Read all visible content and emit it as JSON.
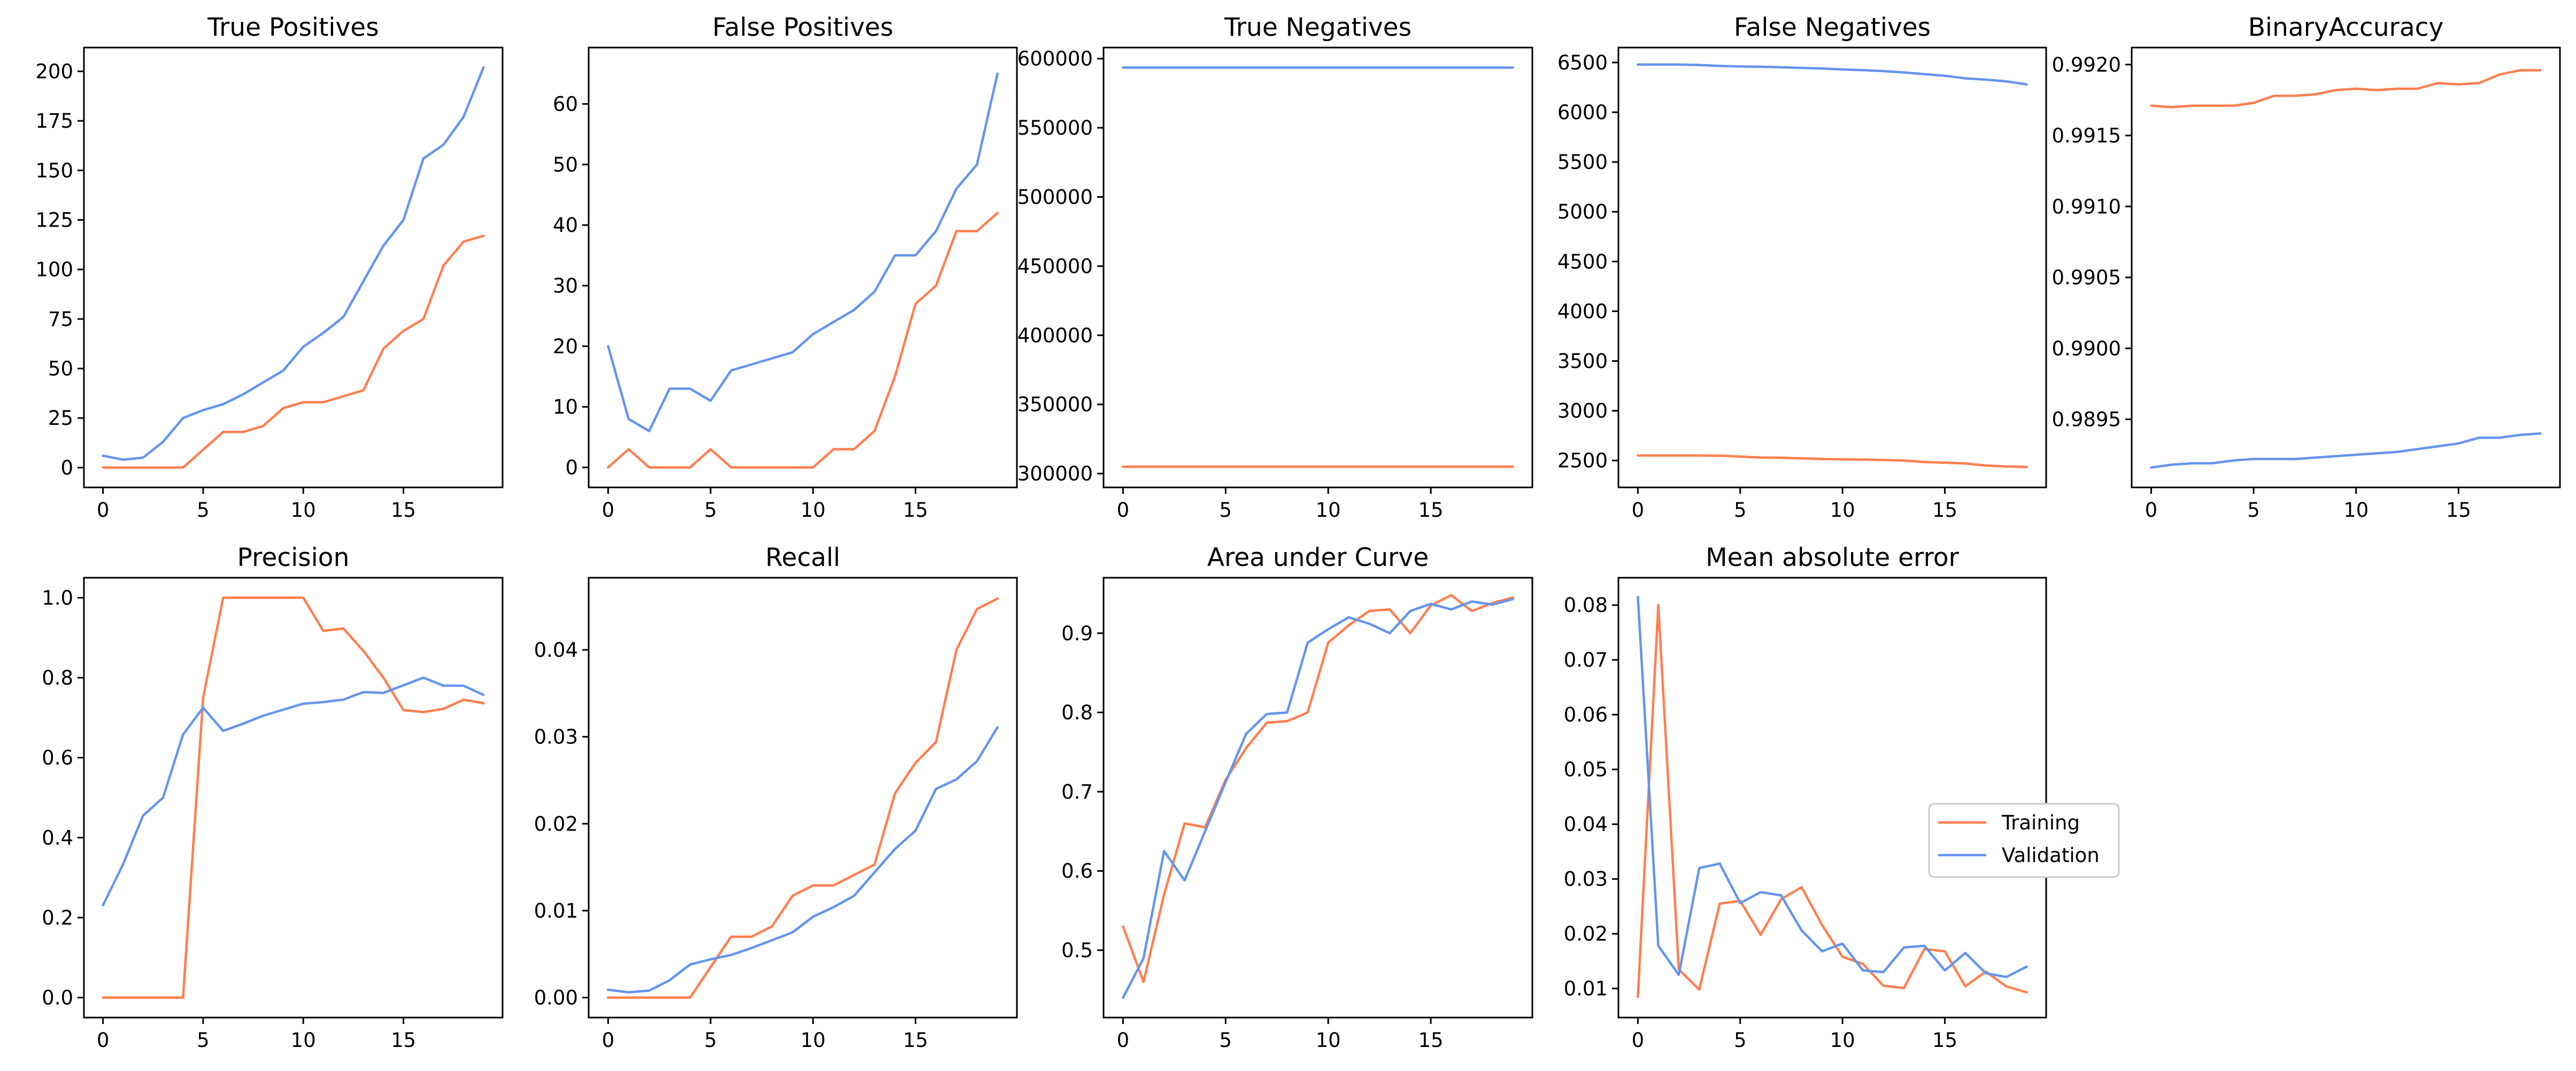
{
  "colors": {
    "training": "#ff7f50",
    "validation": "#6495ed"
  },
  "legend": {
    "entries": [
      {
        "label": "Training",
        "color": "#ff7f50"
      },
      {
        "label": "Validation",
        "color": "#6495ed"
      }
    ]
  },
  "chart_data": [
    {
      "type": "line",
      "title": "True Positives",
      "xlim": [
        -0.95,
        19.95
      ],
      "ylim": [
        -10,
        212
      ],
      "xticks": [
        0,
        5,
        10,
        15
      ],
      "yticks": [
        0,
        25,
        50,
        75,
        100,
        125,
        150,
        175,
        200
      ],
      "ytick_labels": [
        "0",
        "25",
        "50",
        "75",
        "100",
        "125",
        "150",
        "175",
        "200"
      ],
      "series": [
        {
          "name": "Training",
          "color": "#ff7f50",
          "x": [
            0,
            1,
            2,
            3,
            4,
            5,
            6,
            7,
            8,
            9,
            10,
            11,
            12,
            13,
            14,
            15,
            16,
            17,
            18,
            19
          ],
          "values": [
            0,
            0,
            0,
            0,
            0,
            9,
            18,
            18,
            21,
            30,
            33,
            33,
            36,
            39,
            60,
            69,
            75,
            102,
            114,
            117
          ]
        },
        {
          "name": "Validation",
          "color": "#6495ed",
          "x": [
            0,
            1,
            2,
            3,
            4,
            5,
            6,
            7,
            8,
            9,
            10,
            11,
            12,
            13,
            14,
            15,
            16,
            17,
            18,
            19
          ],
          "values": [
            6,
            4,
            5,
            13,
            25,
            29,
            32,
            37,
            43,
            49,
            61,
            68,
            76,
            94,
            112,
            125,
            156,
            163,
            177,
            202
          ]
        }
      ]
    },
    {
      "type": "line",
      "title": "False Positives",
      "xlim": [
        -0.95,
        19.95
      ],
      "ylim": [
        -3.3,
        69.3
      ],
      "xticks": [
        0,
        5,
        10,
        15
      ],
      "yticks": [
        0,
        10,
        20,
        30,
        40,
        50,
        60
      ],
      "ytick_labels": [
        "0",
        "10",
        "20",
        "30",
        "40",
        "50",
        "60"
      ],
      "series": [
        {
          "name": "Training",
          "color": "#ff7f50",
          "x": [
            0,
            1,
            2,
            3,
            4,
            5,
            6,
            7,
            8,
            9,
            10,
            11,
            12,
            13,
            14,
            15,
            16,
            17,
            18,
            19
          ],
          "values": [
            0,
            3,
            0,
            0,
            0,
            3,
            0,
            0,
            0,
            0,
            0,
            3,
            3,
            6,
            15,
            27,
            30,
            39,
            39,
            42
          ]
        },
        {
          "name": "Validation",
          "color": "#6495ed",
          "x": [
            0,
            1,
            2,
            3,
            4,
            5,
            6,
            7,
            8,
            9,
            10,
            11,
            12,
            13,
            14,
            15,
            16,
            17,
            18,
            19
          ],
          "values": [
            20,
            8,
            6,
            13,
            13,
            11,
            16,
            17,
            18,
            19,
            22,
            24,
            26,
            29,
            35,
            35,
            39,
            46,
            50,
            65
          ]
        }
      ]
    },
    {
      "type": "line",
      "title": "True Negatives",
      "xlim": [
        -0.95,
        19.95
      ],
      "ylim": [
        290000,
        608000
      ],
      "xticks": [
        0,
        5,
        10,
        15
      ],
      "yticks": [
        300000,
        350000,
        400000,
        450000,
        500000,
        550000,
        600000
      ],
      "ytick_labels": [
        "300000",
        "350000",
        "400000",
        "450000",
        "500000",
        "550000",
        "600000"
      ],
      "series": [
        {
          "name": "Training",
          "color": "#ff7f50",
          "x": [
            0,
            1,
            2,
            3,
            4,
            5,
            6,
            7,
            8,
            9,
            10,
            11,
            12,
            13,
            14,
            15,
            16,
            17,
            18,
            19
          ],
          "values": [
            305000,
            305000,
            305000,
            305000,
            305000,
            305000,
            305000,
            305000,
            305000,
            305000,
            305000,
            305000,
            305000,
            305000,
            305000,
            305000,
            305000,
            305000,
            305000,
            305000
          ]
        },
        {
          "name": "Validation",
          "color": "#6495ed",
          "x": [
            0,
            1,
            2,
            3,
            4,
            5,
            6,
            7,
            8,
            9,
            10,
            11,
            12,
            13,
            14,
            15,
            16,
            17,
            18,
            19
          ],
          "values": [
            593500,
            593500,
            593500,
            593500,
            593500,
            593500,
            593500,
            593500,
            593500,
            593500,
            593500,
            593500,
            593500,
            593500,
            593500,
            593500,
            593500,
            593500,
            593500,
            593500
          ]
        }
      ]
    },
    {
      "type": "line",
      "title": "False Negatives",
      "xlim": [
        -0.95,
        19.95
      ],
      "ylim": [
        2230,
        6650
      ],
      "xticks": [
        0,
        5,
        10,
        15
      ],
      "yticks": [
        2500,
        3000,
        3500,
        4000,
        4500,
        5000,
        5500,
        6000,
        6500
      ],
      "ytick_labels": [
        "2500",
        "3000",
        "3500",
        "4000",
        "4500",
        "5000",
        "5500",
        "6000",
        "6500"
      ],
      "series": [
        {
          "name": "Training",
          "color": "#ff7f50",
          "x": [
            0,
            1,
            2,
            3,
            4,
            5,
            6,
            7,
            8,
            9,
            10,
            11,
            12,
            13,
            14,
            15,
            16,
            17,
            18,
            19
          ],
          "values": [
            2550,
            2550,
            2550,
            2550,
            2548,
            2540,
            2530,
            2528,
            2522,
            2515,
            2512,
            2510,
            2505,
            2500,
            2485,
            2478,
            2470,
            2450,
            2440,
            2435
          ]
        },
        {
          "name": "Validation",
          "color": "#6495ed",
          "x": [
            0,
            1,
            2,
            3,
            4,
            5,
            6,
            7,
            8,
            9,
            10,
            11,
            12,
            13,
            14,
            15,
            16,
            17,
            18,
            19
          ],
          "values": [
            6480,
            6480,
            6480,
            6475,
            6465,
            6460,
            6457,
            6452,
            6446,
            6440,
            6430,
            6423,
            6413,
            6400,
            6383,
            6367,
            6340,
            6328,
            6310,
            6280
          ]
        }
      ]
    },
    {
      "type": "line",
      "title": "BinaryAccuracy",
      "xlim": [
        -0.95,
        19.95
      ],
      "ylim": [
        0.98902,
        0.99212
      ],
      "xticks": [
        0,
        5,
        10,
        15
      ],
      "yticks": [
        0.9895,
        0.99,
        0.9905,
        0.991,
        0.9915,
        0.992
      ],
      "ytick_labels": [
        "0.9895",
        "0.9900",
        "0.9905",
        "0.9910",
        "0.9915",
        "0.9920"
      ],
      "series": [
        {
          "name": "Training",
          "color": "#ff7f50",
          "x": [
            0,
            1,
            2,
            3,
            4,
            5,
            6,
            7,
            8,
            9,
            10,
            11,
            12,
            13,
            14,
            15,
            16,
            17,
            18,
            19
          ],
          "values": [
            0.99171,
            0.9917,
            0.99171,
            0.99171,
            0.99171,
            0.99173,
            0.99178,
            0.99178,
            0.99179,
            0.99182,
            0.99183,
            0.99182,
            0.99183,
            0.99183,
            0.99187,
            0.99186,
            0.99187,
            0.99193,
            0.99196,
            0.99196
          ]
        },
        {
          "name": "Validation",
          "color": "#6495ed",
          "x": [
            0,
            1,
            2,
            3,
            4,
            5,
            6,
            7,
            8,
            9,
            10,
            11,
            12,
            13,
            14,
            15,
            16,
            17,
            18,
            19
          ],
          "values": [
            0.98916,
            0.98918,
            0.98919,
            0.98919,
            0.98921,
            0.98922,
            0.98922,
            0.98922,
            0.98923,
            0.98924,
            0.98925,
            0.98926,
            0.98927,
            0.98929,
            0.98931,
            0.98933,
            0.98937,
            0.98937,
            0.98939,
            0.9894
          ]
        }
      ]
    },
    {
      "type": "line",
      "title": "Precision",
      "xlim": [
        -0.95,
        19.95
      ],
      "ylim": [
        -0.05,
        1.05
      ],
      "xticks": [
        0,
        5,
        10,
        15
      ],
      "yticks": [
        0,
        0.2,
        0.4,
        0.6,
        0.8,
        1.0
      ],
      "ytick_labels": [
        "0.0",
        "0.2",
        "0.4",
        "0.6",
        "0.8",
        "1.0"
      ],
      "series": [
        {
          "name": "Training",
          "color": "#ff7f50",
          "x": [
            0,
            1,
            2,
            3,
            4,
            5,
            6,
            7,
            8,
            9,
            10,
            11,
            12,
            13,
            14,
            15,
            16,
            17,
            18,
            19
          ],
          "values": [
            0,
            0,
            0,
            0,
            0,
            0.75,
            1.0,
            1.0,
            1.0,
            1.0,
            1.0,
            0.917,
            0.923,
            0.867,
            0.8,
            0.719,
            0.714,
            0.722,
            0.745,
            0.736
          ]
        },
        {
          "name": "Validation",
          "color": "#6495ed",
          "x": [
            0,
            1,
            2,
            3,
            4,
            5,
            6,
            7,
            8,
            9,
            10,
            11,
            12,
            13,
            14,
            15,
            16,
            17,
            18,
            19
          ],
          "values": [
            0.231,
            0.333,
            0.455,
            0.5,
            0.658,
            0.725,
            0.667,
            0.685,
            0.705,
            0.72,
            0.735,
            0.739,
            0.745,
            0.764,
            0.762,
            0.781,
            0.8,
            0.78,
            0.78,
            0.757
          ]
        }
      ]
    },
    {
      "type": "line",
      "title": "Recall",
      "xlim": [
        -0.95,
        19.95
      ],
      "ylim": [
        -0.0023,
        0.0483
      ],
      "xticks": [
        0,
        5,
        10,
        15
      ],
      "yticks": [
        0,
        0.01,
        0.02,
        0.03,
        0.04
      ],
      "ytick_labels": [
        "0.00",
        "0.01",
        "0.02",
        "0.03",
        "0.04"
      ],
      "series": [
        {
          "name": "Training",
          "color": "#ff7f50",
          "x": [
            0,
            1,
            2,
            3,
            4,
            5,
            6,
            7,
            8,
            9,
            10,
            11,
            12,
            13,
            14,
            15,
            16,
            17,
            18,
            19
          ],
          "values": [
            0,
            0,
            0,
            0,
            0,
            0.0035,
            0.007,
            0.007,
            0.0082,
            0.0117,
            0.0129,
            0.0129,
            0.0141,
            0.0153,
            0.0235,
            0.027,
            0.0294,
            0.04,
            0.0447,
            0.0459
          ]
        },
        {
          "name": "Validation",
          "color": "#6495ed",
          "x": [
            0,
            1,
            2,
            3,
            4,
            5,
            6,
            7,
            8,
            9,
            10,
            11,
            12,
            13,
            14,
            15,
            16,
            17,
            18,
            19
          ],
          "values": [
            0.0009,
            0.0006,
            0.0008,
            0.002,
            0.0038,
            0.0044,
            0.0049,
            0.0057,
            0.0066,
            0.0075,
            0.0093,
            0.0104,
            0.0117,
            0.0144,
            0.0171,
            0.0192,
            0.024,
            0.0251,
            0.0272,
            0.0311
          ]
        }
      ]
    },
    {
      "type": "line",
      "title": "Area under Curve",
      "xlim": [
        -0.95,
        19.95
      ],
      "ylim": [
        0.415,
        0.97
      ],
      "xticks": [
        0,
        5,
        10,
        15
      ],
      "yticks": [
        0.5,
        0.6,
        0.7,
        0.8,
        0.9
      ],
      "ytick_labels": [
        "0.5",
        "0.6",
        "0.7",
        "0.8",
        "0.9"
      ],
      "series": [
        {
          "name": "Training",
          "color": "#ff7f50",
          "x": [
            0,
            1,
            2,
            3,
            4,
            5,
            6,
            7,
            8,
            9,
            10,
            11,
            12,
            13,
            14,
            15,
            16,
            17,
            18,
            19
          ],
          "values": [
            0.53,
            0.46,
            0.57,
            0.66,
            0.655,
            0.715,
            0.755,
            0.787,
            0.789,
            0.8,
            0.888,
            0.91,
            0.928,
            0.93,
            0.9,
            0.935,
            0.948,
            0.928,
            0.938,
            0.945
          ]
        },
        {
          "name": "Validation",
          "color": "#6495ed",
          "x": [
            0,
            1,
            2,
            3,
            4,
            5,
            6,
            7,
            8,
            9,
            10,
            11,
            12,
            13,
            14,
            15,
            16,
            17,
            18,
            19
          ],
          "values": [
            0.44,
            0.49,
            0.625,
            0.588,
            0.65,
            0.712,
            0.773,
            0.798,
            0.8,
            0.888,
            0.905,
            0.92,
            0.912,
            0.9,
            0.928,
            0.937,
            0.93,
            0.94,
            0.936,
            0.943
          ]
        }
      ]
    },
    {
      "type": "line",
      "title": "Mean absolute error",
      "xlim": [
        -0.95,
        19.95
      ],
      "ylim": [
        0.0047,
        0.085
      ],
      "xticks": [
        0,
        5,
        10,
        15
      ],
      "yticks": [
        0.01,
        0.02,
        0.03,
        0.04,
        0.05,
        0.06,
        0.07,
        0.08
      ],
      "ytick_labels": [
        "0.01",
        "0.02",
        "0.03",
        "0.04",
        "0.05",
        "0.06",
        "0.07",
        "0.08"
      ],
      "series": [
        {
          "name": "Training",
          "color": "#ff7f50",
          "x": [
            0,
            1,
            2,
            3,
            4,
            5,
            6,
            7,
            8,
            9,
            10,
            11,
            12,
            13,
            14,
            15,
            16,
            17,
            18,
            19
          ],
          "values": [
            0.0085,
            0.08,
            0.0135,
            0.0098,
            0.0255,
            0.026,
            0.0198,
            0.0263,
            0.0285,
            0.0216,
            0.0158,
            0.0145,
            0.0105,
            0.0101,
            0.0172,
            0.0168,
            0.0104,
            0.0131,
            0.0104,
            0.0093
          ]
        },
        {
          "name": "Validation",
          "color": "#6495ed",
          "x": [
            0,
            1,
            2,
            3,
            4,
            5,
            6,
            7,
            8,
            9,
            10,
            11,
            12,
            13,
            14,
            15,
            16,
            17,
            18,
            19
          ],
          "values": [
            0.0815,
            0.0178,
            0.0125,
            0.032,
            0.0328,
            0.0256,
            0.0276,
            0.027,
            0.0206,
            0.0168,
            0.0182,
            0.0133,
            0.013,
            0.0175,
            0.0178,
            0.0133,
            0.0165,
            0.0128,
            0.0121,
            0.014
          ]
        }
      ]
    }
  ]
}
